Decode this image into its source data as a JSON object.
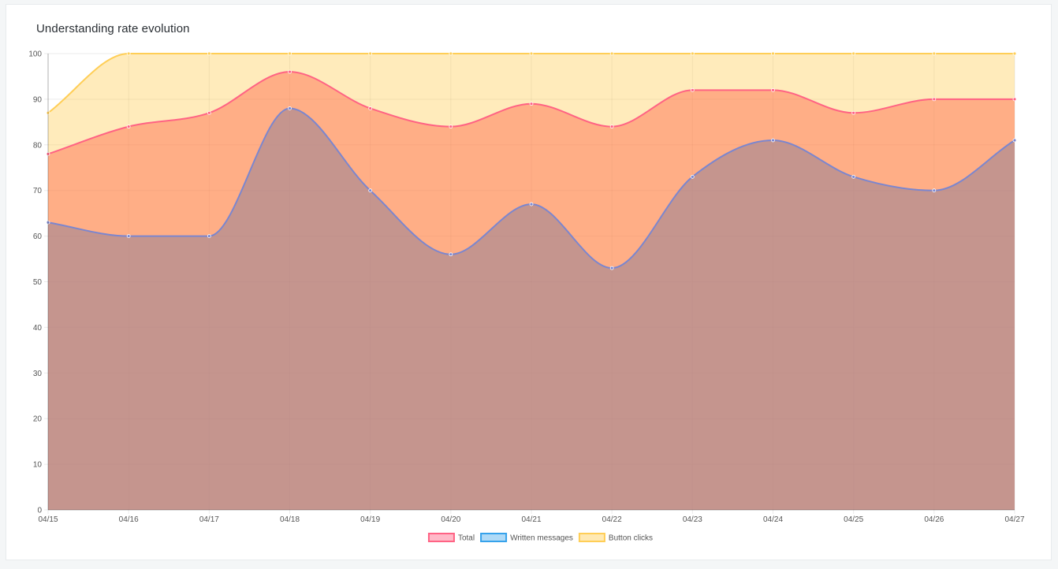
{
  "card": {
    "title": "Understanding rate evolution"
  },
  "chart_data": {
    "type": "area",
    "title": "Understanding rate evolution",
    "xlabel": "",
    "ylabel": "",
    "categories": [
      "04/15",
      "04/16",
      "04/17",
      "04/18",
      "04/19",
      "04/20",
      "04/21",
      "04/22",
      "04/23",
      "04/24",
      "04/25",
      "04/26",
      "04/27"
    ],
    "ylim": [
      0,
      100
    ],
    "yticks": [
      0,
      10,
      20,
      30,
      40,
      50,
      60,
      70,
      80,
      90,
      100
    ],
    "grid": true,
    "legend_position": "bottom",
    "series": [
      {
        "name": "Total",
        "values": [
          78,
          84,
          87,
          96,
          88,
          84,
          89,
          84,
          92,
          92,
          87,
          90,
          90
        ],
        "line_color": "#ff6384",
        "fill_color": "rgba(255, 99, 71, 0.45)",
        "legend_fill": "rgba(255, 99, 132, 0.45)"
      },
      {
        "name": "Written messages",
        "values": [
          63,
          60,
          60,
          88,
          70,
          56,
          67,
          53,
          73,
          81,
          73,
          70,
          81
        ],
        "line_color": "#7b86cf",
        "fill_color": "rgba(150, 130, 150, 0.55)",
        "legend_line": "#36a2eb",
        "legend_fill": "rgba(54, 162, 235, 0.4)"
      },
      {
        "name": "Button clicks",
        "values": [
          87,
          100,
          100,
          100,
          100,
          100,
          100,
          100,
          100,
          100,
          100,
          100,
          100
        ],
        "line_color": "#ffce56",
        "fill_color": "rgba(255, 206, 86, 0.40)",
        "legend_fill": "rgba(255, 206, 86, 0.45)"
      }
    ]
  }
}
